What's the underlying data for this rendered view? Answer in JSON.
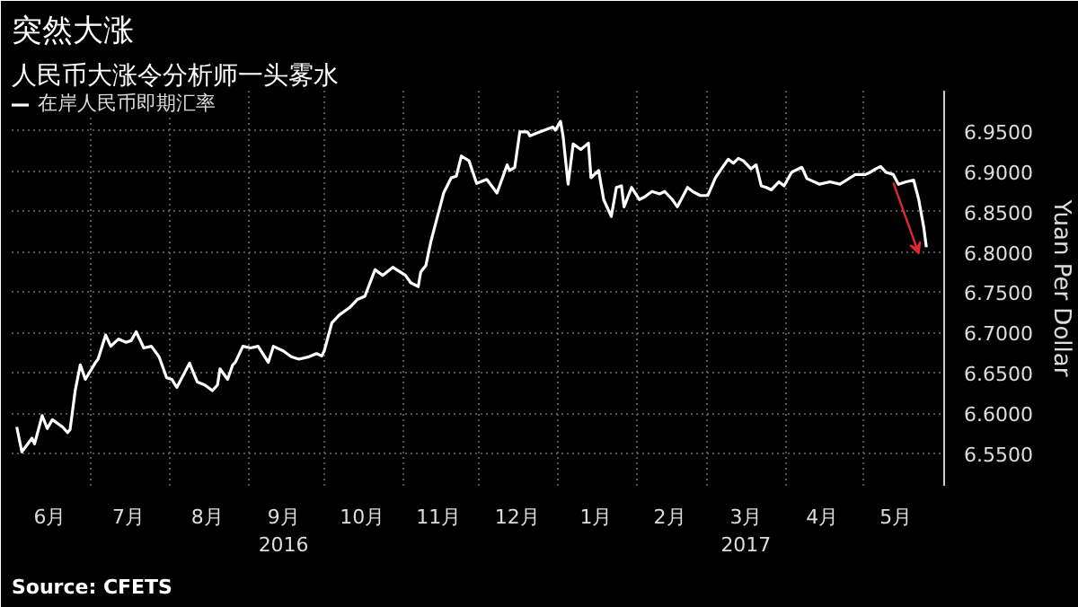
{
  "chart_data": {
    "type": "line",
    "title": "突然大涨",
    "subtitle": "人民币大涨令分析师一头雾水",
    "ylabel": "Yuan Per Dollar",
    "x": [
      "2016-06-02",
      "2016-06-04",
      "2016-06-08",
      "2016-06-09",
      "2016-06-12",
      "2016-06-14",
      "2016-06-16",
      "2016-06-20",
      "2016-06-22",
      "2016-06-23",
      "2016-06-25",
      "2016-06-27",
      "2016-06-29",
      "2016-07-03",
      "2016-07-04",
      "2016-07-07",
      "2016-07-09",
      "2016-07-12",
      "2016-07-15",
      "2016-07-17",
      "2016-07-19",
      "2016-07-22",
      "2016-07-25",
      "2016-07-28",
      "2016-07-31",
      "2016-08-02",
      "2016-08-04",
      "2016-08-09",
      "2016-08-12",
      "2016-08-15",
      "2016-08-18",
      "2016-08-20",
      "2016-08-21",
      "2016-08-24",
      "2016-08-26",
      "2016-08-27",
      "2016-08-30",
      "2016-09-02",
      "2016-09-05",
      "2016-09-09",
      "2016-09-11",
      "2016-09-15",
      "2016-09-18",
      "2016-09-21",
      "2016-09-25",
      "2016-09-28",
      "2016-09-30",
      "2016-10-01",
      "2016-10-04",
      "2016-10-07",
      "2016-10-11",
      "2016-10-14",
      "2016-10-17",
      "2016-10-21",
      "2016-10-24",
      "2016-10-28",
      "2016-11-02",
      "2016-11-04",
      "2016-11-07",
      "2016-11-08",
      "2016-11-10",
      "2016-11-12",
      "2016-11-15",
      "2016-11-17",
      "2016-11-20",
      "2016-11-22",
      "2016-11-24",
      "2016-11-27",
      "2016-11-30",
      "2016-12-04",
      "2016-12-08",
      "2016-12-12",
      "2016-12-13",
      "2016-12-15",
      "2016-12-17",
      "2016-12-20",
      "2016-12-21",
      "2016-12-25",
      "2016-12-30",
      "2016-12-31",
      "2017-01-02",
      "2017-01-03",
      "2017-01-05",
      "2017-01-07",
      "2017-01-10",
      "2017-01-13",
      "2017-01-14",
      "2017-01-17",
      "2017-01-19",
      "2017-01-22",
      "2017-01-24",
      "2017-01-26",
      "2017-01-27",
      "2017-01-30",
      "2017-02-02",
      "2017-02-04",
      "2017-02-07",
      "2017-02-10",
      "2017-02-12",
      "2017-02-15",
      "2017-02-17",
      "2017-02-21",
      "2017-02-23",
      "2017-02-26",
      "2017-03-01",
      "2017-03-04",
      "2017-03-07",
      "2017-03-09",
      "2017-03-11",
      "2017-03-13",
      "2017-03-15",
      "2017-03-18",
      "2017-03-20",
      "2017-03-22",
      "2017-03-24",
      "2017-03-26",
      "2017-03-29",
      "2017-03-31",
      "2017-04-03",
      "2017-04-07",
      "2017-04-09",
      "2017-04-14",
      "2017-04-18",
      "2017-04-22",
      "2017-04-26",
      "2017-04-28",
      "2017-05-02",
      "2017-05-04",
      "2017-05-06",
      "2017-05-08",
      "2017-05-10",
      "2017-05-13",
      "2017-05-15",
      "2017-05-18",
      "2017-05-21",
      "2017-05-23",
      "2017-05-25",
      "2017-05-26"
    ],
    "series": [
      {
        "name": "在岸人民币即期汇率",
        "color": "#ffffff",
        "values": [
          6.583,
          6.552,
          6.569,
          6.562,
          6.597,
          6.581,
          6.592,
          6.583,
          6.576,
          6.58,
          6.628,
          6.66,
          6.642,
          6.663,
          6.667,
          6.697,
          6.683,
          6.692,
          6.688,
          6.69,
          6.701,
          6.681,
          6.683,
          6.67,
          6.644,
          6.642,
          6.632,
          6.662,
          6.639,
          6.635,
          6.628,
          6.635,
          6.655,
          6.642,
          6.66,
          6.663,
          6.683,
          6.681,
          6.683,
          6.663,
          6.683,
          6.677,
          6.67,
          6.667,
          6.67,
          6.674,
          6.671,
          6.677,
          6.712,
          6.722,
          6.731,
          6.741,
          6.745,
          6.778,
          6.771,
          6.781,
          6.771,
          6.762,
          6.757,
          6.775,
          6.783,
          6.813,
          6.849,
          6.873,
          6.892,
          6.894,
          6.919,
          6.913,
          6.885,
          6.89,
          6.873,
          6.908,
          6.901,
          6.905,
          6.949,
          6.949,
          6.944,
          6.949,
          6.955,
          6.951,
          6.962,
          6.944,
          6.884,
          6.934,
          6.927,
          6.935,
          6.892,
          6.901,
          6.865,
          6.844,
          6.88,
          6.882,
          6.856,
          6.88,
          6.865,
          6.868,
          6.875,
          6.872,
          6.875,
          6.865,
          6.856,
          6.88,
          6.875,
          6.87,
          6.87,
          6.892,
          6.906,
          6.915,
          6.91,
          6.916,
          6.913,
          6.903,
          6.908,
          6.882,
          6.88,
          6.877,
          6.887,
          6.882,
          6.899,
          6.905,
          6.891,
          6.884,
          6.887,
          6.884,
          6.892,
          6.896,
          6.896,
          6.899,
          6.903,
          6.906,
          6.899,
          6.896,
          6.884,
          6.887,
          6.889,
          6.865,
          6.83,
          6.806
        ]
      }
    ],
    "xlim": [
      "2016-05-31",
      "2017-06-02"
    ],
    "xticks": [
      {
        "value": "2016-06-15",
        "label": "6月"
      },
      {
        "value": "2016-07-01",
        "label": null
      },
      {
        "value": "2016-07-16",
        "label": "7月"
      },
      {
        "value": "2016-08-01",
        "label": null
      },
      {
        "value": "2016-08-16",
        "label": "8月"
      },
      {
        "value": "2016-09-01",
        "label": null
      },
      {
        "value": "2016-09-15",
        "label": "9月\n2016"
      },
      {
        "value": "2016-10-01",
        "label": null
      },
      {
        "value": "2016-10-16",
        "label": "10月"
      },
      {
        "value": "2016-11-01",
        "label": null
      },
      {
        "value": "2016-11-15",
        "label": "11月"
      },
      {
        "value": "2016-12-01",
        "label": null
      },
      {
        "value": "2016-12-16",
        "label": "12月"
      },
      {
        "value": "2017-01-01",
        "label": null
      },
      {
        "value": "2017-01-16",
        "label": "1月"
      },
      {
        "value": "2017-02-01",
        "label": null
      },
      {
        "value": "2017-02-14",
        "label": "2月"
      },
      {
        "value": "2017-03-01",
        "label": null
      },
      {
        "value": "2017-03-16",
        "label": "3月\n2017"
      },
      {
        "value": "2017-04-01",
        "label": null
      },
      {
        "value": "2017-04-15",
        "label": "4月"
      },
      {
        "value": "2017-05-01",
        "label": null
      },
      {
        "value": "2017-05-14",
        "label": "5月"
      }
    ],
    "ylim": [
      6.51,
      7.0
    ],
    "yticks": [
      {
        "value": 6.55,
        "label": "6.5500"
      },
      {
        "value": 6.6,
        "label": "6.6000"
      },
      {
        "value": 6.65,
        "label": "6.6500"
      },
      {
        "value": 6.7,
        "label": "6.7000"
      },
      {
        "value": 6.75,
        "label": "6.7500"
      },
      {
        "value": 6.8,
        "label": "6.8000"
      },
      {
        "value": 6.85,
        "label": "6.8500"
      },
      {
        "value": 6.9,
        "label": "6.9000"
      },
      {
        "value": 6.95,
        "label": "6.9500"
      }
    ],
    "grid": true,
    "legend": "top left",
    "marker": "none",
    "line_style": "solid",
    "annotations": [
      "Source: CFETS"
    ]
  }
}
